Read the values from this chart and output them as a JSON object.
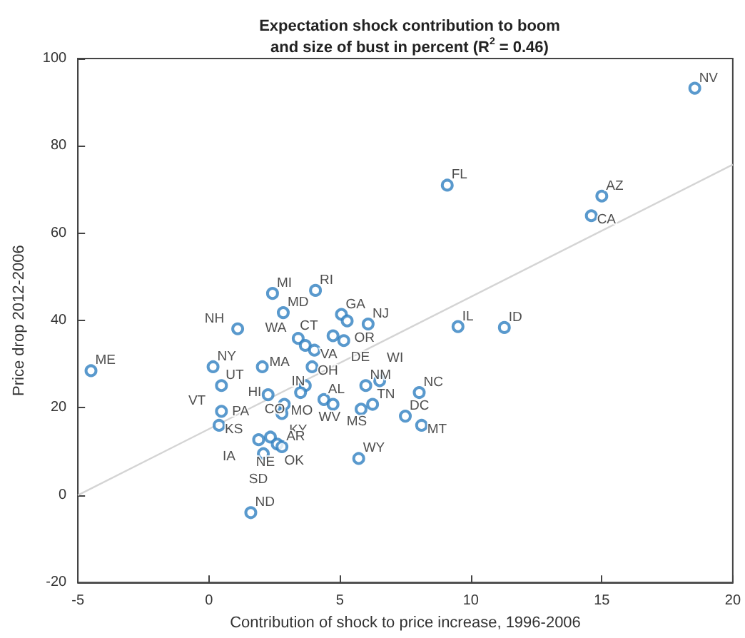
{
  "chart_data": {
    "type": "scatter",
    "title": "Expectation shock contribution to boom\nand size of bust in percent (R$^{2}$ = 0.46)",
    "xlabel": "Contribution of shock to price increase, 1996-2006",
    "ylabel": "Price drop 2012-2006",
    "xlim": [
      -5,
      20
    ],
    "xticks": [
      -5,
      0,
      5,
      10,
      15,
      20
    ],
    "ylim": [
      -20,
      100
    ],
    "yticks": [
      -20,
      0,
      20,
      40,
      60,
      80,
      100
    ],
    "grid": false,
    "marker": "circle",
    "series": [
      {
        "color": "#2f7fc1",
        "x": [
          18.55,
          9.1,
          15.0,
          14.6,
          1.6,
          2.43,
          4.07,
          2.84,
          5.06,
          5.28,
          6.08,
          4.74,
          5.15,
          3.41,
          3.68,
          4.03,
          3.94,
          1.1,
          0.16,
          0.48,
          2.04,
          2.26,
          3.68,
          3.5,
          2.88,
          2.79,
          0.48,
          0.39,
          1.9,
          2.35,
          2.08,
          2.61,
          2.79,
          4.39,
          4.74,
          5.81,
          6.25,
          5.99,
          6.52,
          8.03,
          7.5,
          8.12,
          5.72,
          9.51,
          11.28,
          -4.5
        ],
        "values": [
          93.2,
          71,
          68.5,
          64,
          -4,
          46.2,
          46.9,
          41.8,
          41.4,
          39.9,
          39.2,
          36.5,
          35.4,
          35.9,
          34.3,
          33.2,
          29.4,
          38.1,
          29.4,
          25.1,
          29.4,
          23.0,
          25.1,
          23.5,
          20.8,
          18.7,
          19.2,
          16.0,
          12.7,
          13.3,
          9.5,
          11.7,
          11.1,
          21.9,
          20.8,
          19.7,
          20.8,
          25.1,
          26.2,
          23.5,
          18.1,
          16.0,
          8.4,
          38.6,
          38.4,
          28.5
        ],
        "value_labels": [
          "NV",
          "FL",
          "AZ",
          "CA",
          "ND",
          "MI",
          "RI",
          "MD",
          "GA",
          "OR",
          "NJ",
          "CT",
          "DE",
          "WA",
          "MA",
          "VA",
          "OH",
          "NH",
          "NY",
          "UT",
          "HI",
          "PA",
          "MO",
          "CO",
          "IN",
          "KY",
          "VT",
          "KS",
          "IA",
          "NE",
          "SD",
          "OK",
          "AR",
          "AL",
          "WV",
          "MS",
          "TN",
          "NM",
          "WI",
          "NC",
          "DC",
          "MT",
          "WY",
          "IL",
          "ID",
          "ME"
        ]
      },
      {
        "type": "line",
        "color": "#d4d4d4",
        "x": [
          -5,
          20
        ],
        "values": [
          0,
          75.7
        ],
        "marker": "none"
      }
    ]
  }
}
